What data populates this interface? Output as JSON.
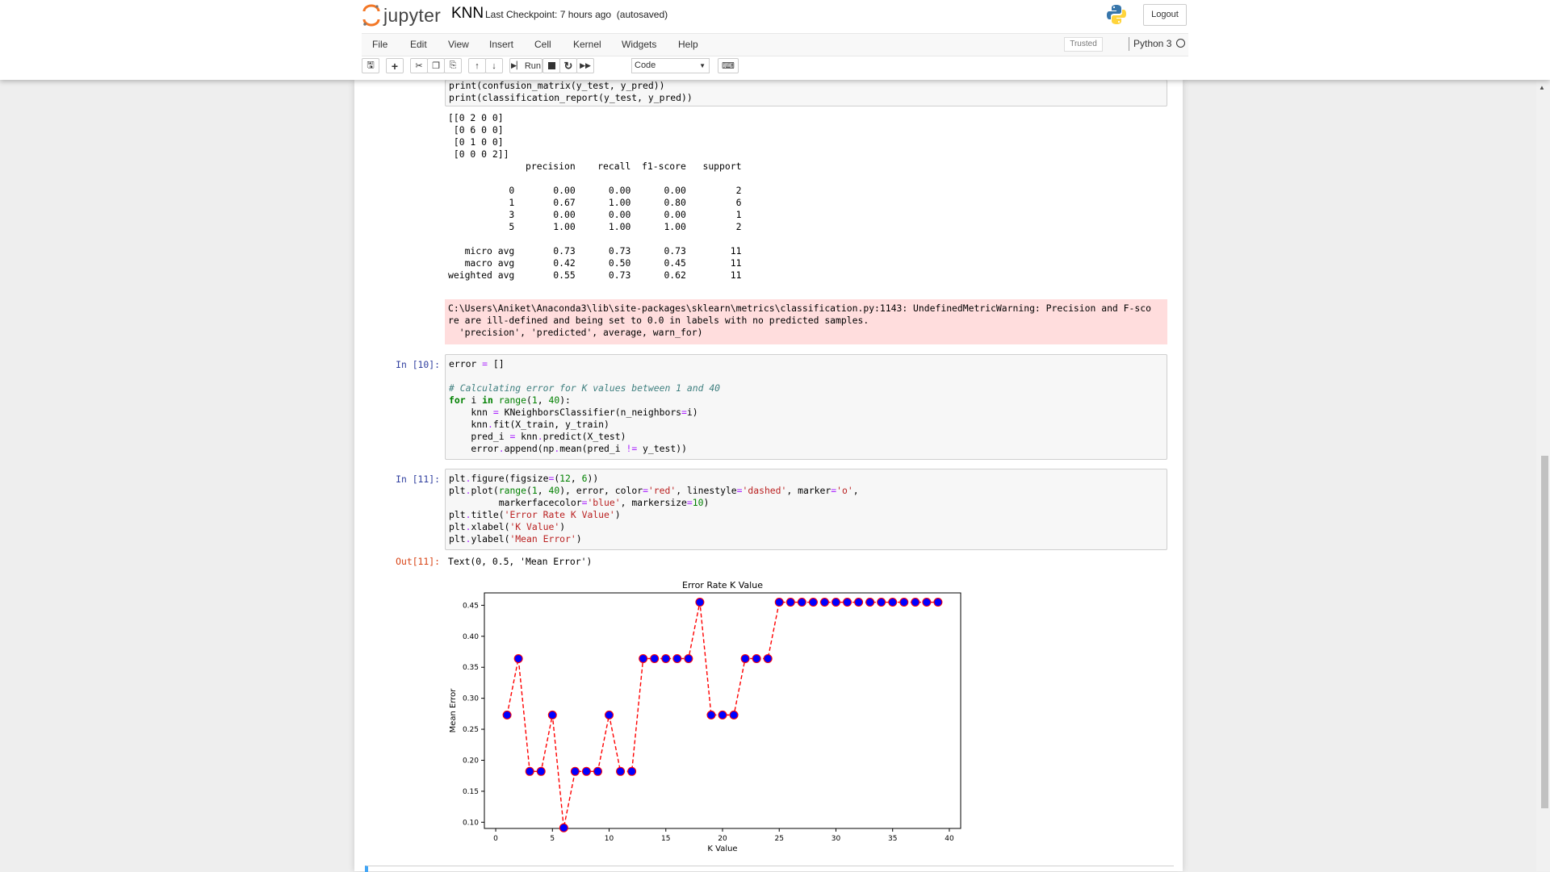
{
  "header": {
    "logo_text": "jupyter",
    "notebook_name": "KNN",
    "checkpoint": "Last Checkpoint: 7 hours ago",
    "autosave": "(autosaved)",
    "logout": "Logout"
  },
  "menu": [
    "File",
    "Edit",
    "View",
    "Insert",
    "Cell",
    "Kernel",
    "Widgets",
    "Help"
  ],
  "status": {
    "trusted": "Trusted",
    "kernel": "Python 3"
  },
  "toolbar": {
    "run_label": "Run",
    "cell_type": "Code"
  },
  "cells": {
    "prev_code": [
      "print(confusion_matrix(y_test, y_pred))",
      "print(classification_report(y_test, y_pred))"
    ],
    "report_output": "[[0 2 0 0]\n [0 6 0 0]\n [0 1 0 0]\n [0 0 0 2]]\n              precision    recall  f1-score   support\n\n           0       0.00      0.00      0.00         2\n           1       0.67      1.00      0.80         6\n           3       0.00      0.00      0.00         1\n           5       1.00      1.00      1.00         2\n\n   micro avg       0.73      0.73      0.73        11\n   macro avg       0.42      0.50      0.45        11\nweighted avg       0.55      0.73      0.62        11",
    "stderr": "C:\\Users\\Aniket\\Anaconda3\\lib\\site-packages\\sklearn\\metrics\\classification.py:1143: UndefinedMetricWarning: Precision and F-sco\nre are ill-defined and being set to 0.0 in labels with no predicted samples.\n  'precision', 'predicted', average, warn_for)",
    "in10_prompt": "In [10]:",
    "in11_prompt": "In [11]:",
    "out11_prompt": "Out[11]:",
    "out11_text": "Text(0, 0.5, 'Mean Error')"
  },
  "chart_data": {
    "type": "line",
    "title": "Error Rate K Value",
    "xlabel": "K Value",
    "ylabel": "Mean Error",
    "xlim": [
      -1,
      41
    ],
    "ylim": [
      0.09,
      0.47
    ],
    "xticks": [
      0,
      5,
      10,
      15,
      20,
      25,
      30,
      35,
      40
    ],
    "yticks": [
      0.1,
      0.15,
      0.2,
      0.25,
      0.3,
      0.35,
      0.4,
      0.45
    ],
    "line_color": "#ff0000",
    "marker_color": "#0000ff",
    "x": [
      1,
      2,
      3,
      4,
      5,
      6,
      7,
      8,
      9,
      10,
      11,
      12,
      13,
      14,
      15,
      16,
      17,
      18,
      19,
      20,
      21,
      22,
      23,
      24,
      25,
      26,
      27,
      28,
      29,
      30,
      31,
      32,
      33,
      34,
      35,
      36,
      37,
      38,
      39
    ],
    "y": [
      0.273,
      0.364,
      0.182,
      0.182,
      0.273,
      0.091,
      0.182,
      0.182,
      0.182,
      0.273,
      0.182,
      0.182,
      0.364,
      0.364,
      0.364,
      0.364,
      0.364,
      0.455,
      0.273,
      0.273,
      0.273,
      0.364,
      0.364,
      0.364,
      0.455,
      0.455,
      0.455,
      0.455,
      0.455,
      0.455,
      0.455,
      0.455,
      0.455,
      0.455,
      0.455,
      0.455,
      0.455,
      0.455,
      0.455
    ]
  }
}
